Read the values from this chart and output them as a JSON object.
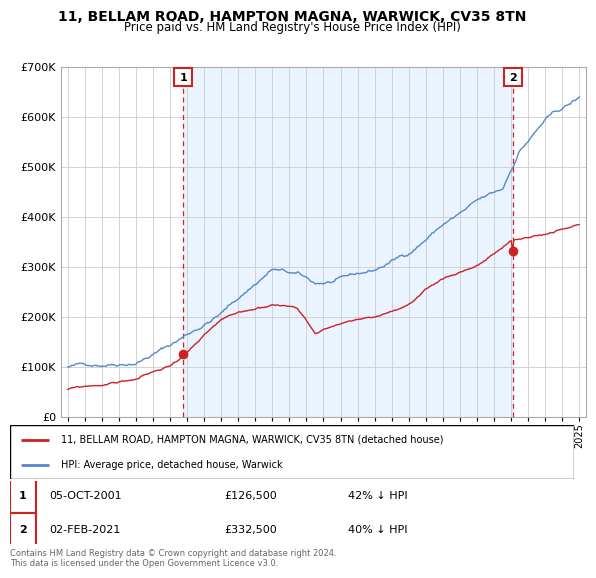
{
  "title": "11, BELLAM ROAD, HAMPTON MAGNA, WARWICK, CV35 8TN",
  "subtitle": "Price paid vs. HM Land Registry's House Price Index (HPI)",
  "hpi_color": "#5588cc",
  "hpi_fill_color": "#ddeeff",
  "price_color": "#cc2222",
  "marker_edge_color": "#cc2222",
  "ylim": [
    0,
    700000
  ],
  "yticks": [
    0,
    100000,
    200000,
    300000,
    400000,
    500000,
    600000,
    700000
  ],
  "xlim_left": 1994.6,
  "xlim_right": 2025.4,
  "legend_line1": "11, BELLAM ROAD, HAMPTON MAGNA, WARWICK, CV35 8TN (detached house)",
  "legend_line2": "HPI: Average price, detached house, Warwick",
  "table_row1": [
    "1",
    "05-OCT-2001",
    "£126,500",
    "42% ↓ HPI"
  ],
  "table_row2": [
    "2",
    "02-FEB-2021",
    "£332,500",
    "40% ↓ HPI"
  ],
  "footnote": "Contains HM Land Registry data © Crown copyright and database right 2024.\nThis data is licensed under the Open Government Licence v3.0.",
  "marker1_year": 2001.75,
  "marker2_year": 2021.09,
  "marker1_price": 126500,
  "marker2_price": 332500,
  "background_color": "#ffffff",
  "grid_color": "#cccccc"
}
